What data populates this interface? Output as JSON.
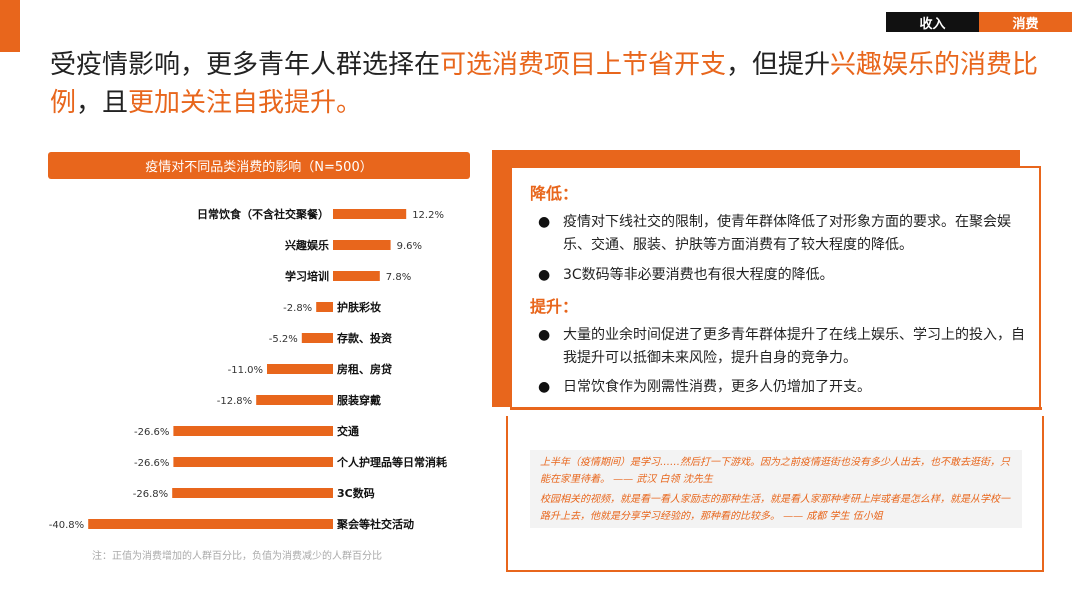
{
  "nav": {
    "tabs": [
      "收入",
      "消费"
    ]
  },
  "headline": {
    "segments": [
      {
        "text": "受疫情影响，更多青年人群选择在",
        "highlight": false
      },
      {
        "text": "可选消费项目上节省开支",
        "highlight": true
      },
      {
        "text": "，但提升",
        "highlight": false
      },
      {
        "text": "兴趣娱乐的消费比例",
        "highlight": true
      },
      {
        "text": "，且",
        "highlight": false
      },
      {
        "text": "更加关注自我提升。",
        "highlight": true
      }
    ]
  },
  "chart": {
    "title": "疫情对不同品类消费的影响（N=500）",
    "note": "注：正值为消费增加的人群百分比，负值为消费减少的人群百分比"
  },
  "chart_data": {
    "type": "bar",
    "orientation": "horizontal",
    "title": "疫情对不同品类消费的影响（N=500）",
    "categories": [
      "日常饮食（不含社交聚餐）",
      "兴趣娱乐",
      "学习培训",
      "护肤彩妆",
      "存款、投资",
      "房租、房贷",
      "服装穿戴",
      "交通",
      "个人护理品等日常消耗",
      "3C数码",
      "聚会等社交活动"
    ],
    "values": [
      12.2,
      9.6,
      7.8,
      -2.8,
      -5.2,
      -11.0,
      -12.8,
      -26.6,
      -26.6,
      -26.8,
      -40.8
    ],
    "value_labels": [
      "12.2%",
      "9.6%",
      "7.8%",
      "-2.8%",
      "-5.2%",
      "-11.0%",
      "-12.8%",
      "-26.6%",
      "-26.6%",
      "-26.8%",
      "-40.8%"
    ],
    "xlim": [
      -40.8,
      12.2
    ],
    "grid": false,
    "legend": "none",
    "bar_color": "#e8661c"
  },
  "panel": {
    "sections": [
      {
        "heading": "降低：",
        "bullets": [
          "疫情对下线社交的限制，使青年群体降低了对形象方面的要求。在聚会娱乐、交通、服装、护肤等方面消费有了较大程度的降低。",
          "3C数码等非必要消费也有很大程度的降低。"
        ]
      },
      {
        "heading": "提升：",
        "bullets": [
          "大量的业余时间促进了更多青年群体提升了在线上娱乐、学习上的投入，自我提升可以抵御未来风险，提升自身的竞争力。",
          "日常饮食作为刚需性消费，更多人仍增加了开支。"
        ]
      }
    ]
  },
  "quotes": [
    "上半年（疫情期间）是学习……然后打一下游戏。因为之前疫情逛街也没有多少人出去，也不敢去逛街，只能在家里待着。 —— 武汉 白领 沈先生",
    "校园相关的视频，就是看一看人家励志的那种生活，就是看人家那种考研上岸或者是怎么样，就是从学校一路升上去，他就是分享学习经验的，那种看的比较多。 —— 成都 学生 伍小姐"
  ],
  "colors": {
    "accent": "#e8661c",
    "text": "#222222",
    "note": "#aaaaaa"
  }
}
